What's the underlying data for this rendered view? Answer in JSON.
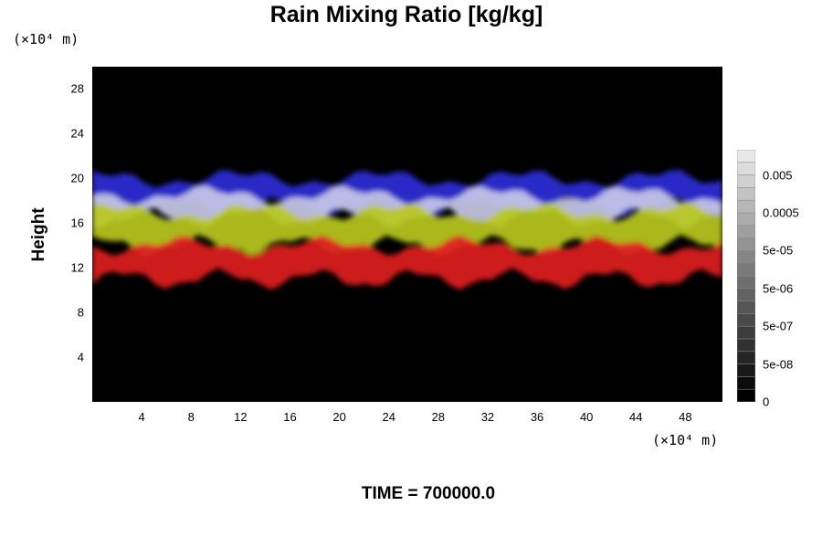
{
  "chart_data": {
    "type": "heatmap",
    "title": "Rain Mixing Ratio [kg/kg]",
    "ylabel": "Height",
    "y_unit": "(×10⁴ m)",
    "x_unit": "(×10⁴ m)",
    "y_ticks": [
      "4",
      "8",
      "12",
      "16",
      "20",
      "24",
      "28"
    ],
    "x_ticks": [
      "4",
      "8",
      "12",
      "16",
      "20",
      "24",
      "28",
      "32",
      "36",
      "40",
      "44",
      "48"
    ],
    "xlim": [
      0,
      51
    ],
    "ylim": [
      0,
      30
    ],
    "colorbar_ticks": [
      "0.005",
      "0.0005",
      "5e-05",
      "5e-06",
      "5e-07",
      "5e-08",
      "0"
    ],
    "colorbar_levels": 20,
    "layers": [
      {
        "color": "#2a2ad8",
        "y_range": [
          17.5,
          20
        ]
      },
      {
        "color": "#c8c8e8",
        "y_range": [
          16.5,
          18.5
        ]
      },
      {
        "color": "#b8c820",
        "y_range": [
          14,
          17
        ]
      },
      {
        "color": "#e02020",
        "y_range": [
          11,
          14
        ]
      }
    ],
    "background_color": "#000000"
  },
  "footer": {
    "time": "TIME = 700000.0"
  }
}
